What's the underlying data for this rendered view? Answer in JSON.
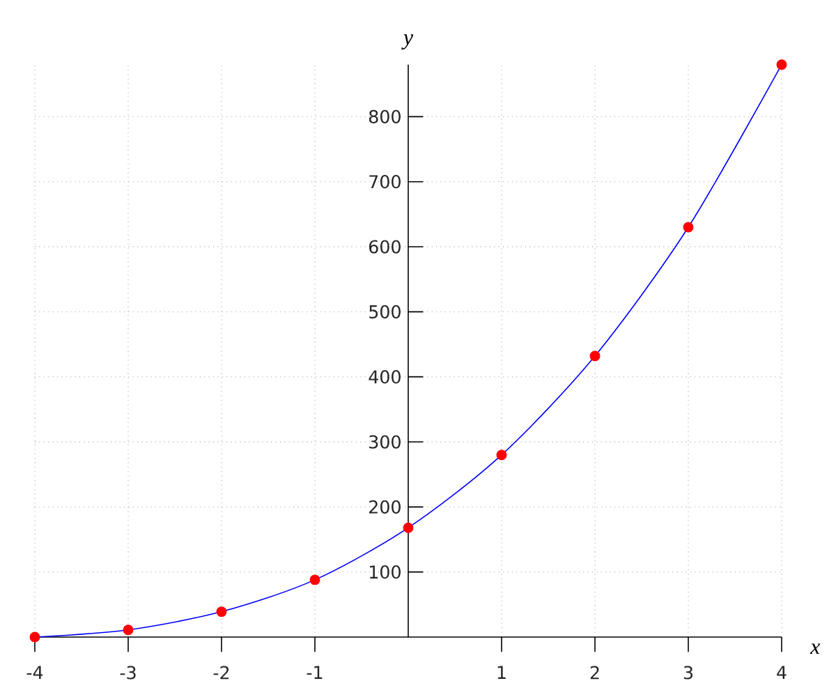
{
  "chart_data": {
    "type": "line",
    "xlabel": "x",
    "ylabel": "y",
    "xlim": [
      -4,
      4
    ],
    "ylim": [
      0,
      880
    ],
    "xticks": [
      -4,
      -3,
      -2,
      -1,
      1,
      2,
      3,
      4
    ],
    "yticks": [
      100,
      200,
      300,
      400,
      500,
      600,
      700,
      800
    ],
    "grid": true,
    "series": [
      {
        "color": "#0000ff",
        "marker": "none",
        "line_style": "solid",
        "x": [
          -4,
          -3,
          -2,
          -1,
          0,
          1,
          2,
          3,
          4
        ],
        "values": [
          0,
          11,
          39,
          88,
          168,
          280,
          432,
          630,
          880
        ]
      },
      {
        "type": "scatter",
        "color": "#ff0000",
        "marker": "circle",
        "x": [
          -4,
          -3,
          -2,
          -1,
          0,
          1,
          2,
          3,
          4
        ],
        "values": [
          0,
          11,
          39,
          88,
          168,
          280,
          432,
          630,
          880
        ]
      }
    ]
  }
}
